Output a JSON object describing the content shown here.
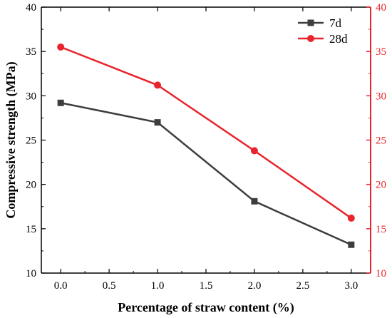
{
  "chart_data": {
    "type": "line",
    "title": "",
    "xlabel": "Percentage of straw content (%)",
    "ylabel": "Compressive strength (MPa)",
    "xlim": [
      -0.2,
      3.2
    ],
    "ylim": [
      10,
      40
    ],
    "right_ylim": [
      10,
      40
    ],
    "x_ticks": [
      "0.0",
      "0.5",
      "1.0",
      "1.5",
      "2.0",
      "2.5",
      "3.0"
    ],
    "x_tick_values": [
      0,
      0.5,
      1.0,
      1.5,
      2.0,
      2.5,
      3.0
    ],
    "y_ticks": [
      "10",
      "15",
      "20",
      "25",
      "30",
      "35",
      "40"
    ],
    "y_tick_values": [
      10,
      15,
      20,
      25,
      30,
      35,
      40
    ],
    "grid": false,
    "legend_position": "top-right",
    "right_axis_color": "#e8252d",
    "x": [
      0,
      1,
      2,
      3
    ],
    "series": [
      {
        "name": "7d",
        "values": [
          29.2,
          27.0,
          18.1,
          13.2
        ],
        "color": "#3d3d3d",
        "marker": "square"
      },
      {
        "name": "28d",
        "values": [
          35.5,
          31.2,
          23.8,
          16.2
        ],
        "color": "#e8252d",
        "marker": "circle"
      }
    ]
  }
}
